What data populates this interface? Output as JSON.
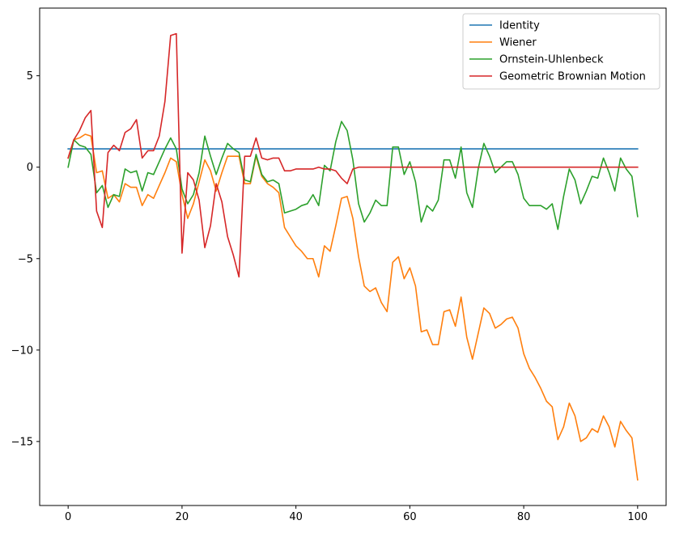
{
  "chart_data": {
    "type": "line",
    "title": "",
    "xlabel": "",
    "ylabel": "",
    "xlim": [
      -5,
      105
    ],
    "ylim": [
      -18.5,
      8.7
    ],
    "grid": false,
    "legend_position": "top-right",
    "x_ticks": [
      0,
      20,
      40,
      60,
      80,
      100
    ],
    "y_ticks": [
      -15,
      -10,
      -5,
      0,
      5
    ],
    "x_tick_labels": [
      "0",
      "20",
      "40",
      "60",
      "80",
      "100"
    ],
    "y_tick_labels": [
      "−15",
      "−10",
      "−5",
      "0",
      "5"
    ],
    "x": [
      0,
      1,
      2,
      3,
      4,
      5,
      6,
      7,
      8,
      9,
      10,
      11,
      12,
      13,
      14,
      15,
      16,
      17,
      18,
      19,
      20,
      21,
      22,
      23,
      24,
      25,
      26,
      27,
      28,
      29,
      30,
      31,
      32,
      33,
      34,
      35,
      36,
      37,
      38,
      39,
      40,
      41,
      42,
      43,
      44,
      45,
      46,
      47,
      48,
      49,
      50,
      51,
      52,
      53,
      54,
      55,
      56,
      57,
      58,
      59,
      60,
      61,
      62,
      63,
      64,
      65,
      66,
      67,
      68,
      69,
      70,
      71,
      72,
      73,
      74,
      75,
      76,
      77,
      78,
      79,
      80,
      81,
      82,
      83,
      84,
      85,
      86,
      87,
      88,
      89,
      90,
      91,
      92,
      93,
      94,
      95,
      96,
      97,
      98,
      99,
      100
    ],
    "series": [
      {
        "name": "Identity",
        "color": "#1f77b4",
        "values": [
          1,
          1,
          1,
          1,
          1,
          1,
          1,
          1,
          1,
          1,
          1,
          1,
          1,
          1,
          1,
          1,
          1,
          1,
          1,
          1,
          1,
          1,
          1,
          1,
          1,
          1,
          1,
          1,
          1,
          1,
          1,
          1,
          1,
          1,
          1,
          1,
          1,
          1,
          1,
          1,
          1,
          1,
          1,
          1,
          1,
          1,
          1,
          1,
          1,
          1,
          1,
          1,
          1,
          1,
          1,
          1,
          1,
          1,
          1,
          1,
          1,
          1,
          1,
          1,
          1,
          1,
          1,
          1,
          1,
          1,
          1,
          1,
          1,
          1,
          1,
          1,
          1,
          1,
          1,
          1,
          1,
          1,
          1,
          1,
          1,
          1,
          1,
          1,
          1,
          1,
          1,
          1,
          1,
          1,
          1,
          1,
          1,
          1,
          1,
          1,
          1
        ]
      },
      {
        "name": "Wiener",
        "color": "#ff7f0e",
        "values": [
          0.5,
          1.5,
          1.6,
          1.8,
          1.7,
          -0.3,
          -0.2,
          -1.7,
          -1.5,
          -1.9,
          -0.9,
          -1.1,
          -1.1,
          -2.1,
          -1.5,
          -1.7,
          -1.0,
          -0.3,
          0.5,
          0.3,
          -1.5,
          -2.8,
          -2.0,
          -0.8,
          0.4,
          -0.2,
          -1.3,
          -0.3,
          0.6,
          0.6,
          0.6,
          -0.9,
          -0.9,
          0.6,
          -0.5,
          -0.9,
          -1.1,
          -1.4,
          -3.3,
          -3.8,
          -4.3,
          -4.6,
          -5.0,
          -5.0,
          -6.0,
          -4.3,
          -4.6,
          -3.2,
          -1.7,
          -1.6,
          -2.8,
          -4.9,
          -6.5,
          -6.8,
          -6.6,
          -7.4,
          -7.9,
          -5.2,
          -4.9,
          -6.1,
          -5.5,
          -6.5,
          -9.0,
          -8.9,
          -9.7,
          -9.7,
          -7.9,
          -7.8,
          -8.7,
          -7.1,
          -9.3,
          -10.5,
          -9.1,
          -7.7,
          -8.0,
          -8.8,
          -8.6,
          -8.3,
          -8.2,
          -8.8,
          -10.2,
          -11.0,
          -11.5,
          -12.1,
          -12.8,
          -13.1,
          -14.9,
          -14.2,
          -12.9,
          -13.6,
          -15.0,
          -14.8,
          -14.3,
          -14.5,
          -13.6,
          -14.2,
          -15.3,
          -13.9,
          -14.4,
          -14.8,
          -17.1
        ]
      },
      {
        "name": "Ornstein-Uhlenbeck",
        "color": "#2ca02c",
        "values": [
          0.0,
          1.5,
          1.2,
          1.1,
          0.7,
          -1.4,
          -1.0,
          -2.2,
          -1.5,
          -1.6,
          -0.1,
          -0.3,
          -0.2,
          -1.3,
          -0.3,
          -0.4,
          0.3,
          1.0,
          1.6,
          1.0,
          -1.2,
          -2.0,
          -1.5,
          -0.3,
          1.7,
          0.6,
          -0.4,
          0.5,
          1.3,
          1.0,
          0.8,
          -0.7,
          -0.8,
          0.7,
          -0.4,
          -0.8,
          -0.7,
          -0.9,
          -2.5,
          -2.4,
          -2.3,
          -2.1,
          -2.0,
          -1.5,
          -2.1,
          0.1,
          -0.2,
          1.4,
          2.5,
          2.0,
          0.4,
          -2.0,
          -3.0,
          -2.5,
          -1.8,
          -2.1,
          -2.1,
          1.1,
          1.1,
          -0.4,
          0.3,
          -0.8,
          -3.0,
          -2.1,
          -2.4,
          -1.8,
          0.4,
          0.4,
          -0.6,
          1.1,
          -1.4,
          -2.2,
          -0.1,
          1.3,
          0.6,
          -0.3,
          0.0,
          0.3,
          0.3,
          -0.4,
          -1.7,
          -2.1,
          -2.1,
          -2.1,
          -2.3,
          -2.0,
          -3.4,
          -1.6,
          -0.1,
          -0.7,
          -2.0,
          -1.3,
          -0.5,
          -0.6,
          0.5,
          -0.3,
          -1.3,
          0.5,
          -0.1,
          -0.5,
          -2.7
        ]
      },
      {
        "name": "Geometric Brownian Motion",
        "color": "#d62728",
        "values": [
          0.5,
          1.5,
          2.0,
          2.7,
          3.1,
          -2.4,
          -3.3,
          0.8,
          1.2,
          0.9,
          1.9,
          2.1,
          2.6,
          0.5,
          0.9,
          0.9,
          1.7,
          3.6,
          7.2,
          7.3,
          -4.7,
          -0.3,
          -0.7,
          -1.8,
          -4.4,
          -3.2,
          -0.9,
          -1.9,
          -3.8,
          -4.8,
          -6.0,
          0.6,
          0.6,
          1.6,
          0.5,
          0.4,
          0.5,
          0.5,
          -0.2,
          -0.2,
          -0.1,
          -0.1,
          -0.1,
          -0.1,
          0.0,
          -0.1,
          -0.1,
          -0.2,
          -0.6,
          -0.9,
          -0.1,
          0.0,
          0.0,
          0.0,
          0.0,
          0.0,
          0.0,
          0.0,
          0.0,
          0.0,
          0.0,
          0.0,
          0.0,
          0.0,
          0.0,
          0.0,
          0.0,
          0.0,
          0.0,
          0.0,
          0.0,
          0.0,
          0.0,
          0.0,
          0.0,
          0.0,
          0.0,
          0.0,
          0.0,
          0.0,
          0.0,
          0.0,
          0.0,
          0.0,
          0.0,
          0.0,
          0.0,
          0.0,
          0.0,
          0.0,
          0.0,
          0.0,
          0.0,
          0.0,
          0.0,
          0.0,
          0.0,
          0.0,
          0.0,
          0.0,
          0.0
        ]
      }
    ]
  }
}
